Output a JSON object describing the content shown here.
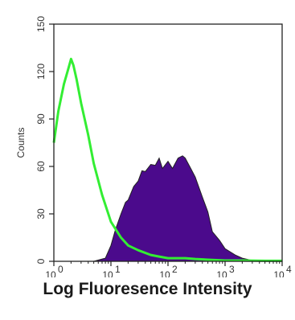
{
  "chart_data": {
    "type": "area",
    "title": "",
    "xlabel": "Log Fluoresence Intensity",
    "ylabel": "Counts",
    "xscale": "log",
    "xlim": [
      1,
      10000
    ],
    "ylim": [
      0,
      150
    ],
    "x_ticks": [
      {
        "value": 1,
        "base": "10",
        "exp": "0"
      },
      {
        "value": 10,
        "base": "10",
        "exp": "1"
      },
      {
        "value": 100,
        "base": "10",
        "exp": "2"
      },
      {
        "value": 1000,
        "base": "10",
        "exp": "3"
      },
      {
        "value": 10000,
        "base": "10",
        "exp": "4"
      }
    ],
    "y_ticks": [
      "0",
      "30",
      "60",
      "90",
      "120",
      "150"
    ],
    "grid": false,
    "legend": "none",
    "series": [
      {
        "color": "#4b0a8c",
        "style": "filled",
        "x": [
          1,
          5,
          8,
          10,
          12,
          15,
          18,
          20,
          25,
          30,
          35,
          40,
          50,
          60,
          70,
          80,
          100,
          120,
          150,
          180,
          200,
          250,
          300,
          400,
          500,
          600,
          800,
          1000,
          1500,
          2000,
          3000,
          4000,
          10000
        ],
        "y": [
          0,
          0,
          2,
          10,
          20,
          30,
          36,
          40,
          46,
          52,
          56,
          58,
          60,
          62,
          64,
          60,
          62,
          60,
          64,
          68,
          64,
          60,
          52,
          42,
          30,
          20,
          12,
          8,
          4,
          2,
          0.5,
          0,
          0
        ]
      },
      {
        "color": "#33ee33",
        "style": "line",
        "x": [
          1,
          1.2,
          1.5,
          1.8,
          2,
          2.2,
          2.5,
          3,
          4,
          5,
          7,
          10,
          15,
          20,
          30,
          50,
          70,
          100,
          150,
          200,
          300,
          500,
          1000,
          2000,
          5000,
          10000
        ],
        "y": [
          75,
          95,
          112,
          122,
          128,
          124,
          115,
          100,
          80,
          62,
          42,
          25,
          15,
          10,
          7,
          4,
          3,
          2,
          2,
          2,
          1.5,
          1,
          0.5,
          0.5,
          0.3,
          0.3
        ]
      }
    ]
  }
}
